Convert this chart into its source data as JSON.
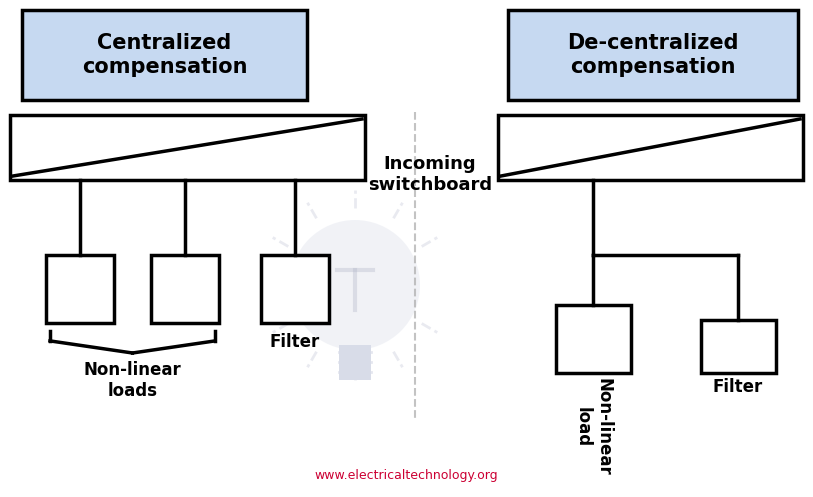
{
  "bg_color": "#ffffff",
  "title_bg_color": "#c6d9f1",
  "title_border_color": "#000000",
  "box_color": "#ffffff",
  "box_border_color": "#000000",
  "line_color": "#000000",
  "lightbulb_color": "#d8dce8",
  "left_title": "Centralized\ncompensation",
  "right_title": "De-centralized\ncompensation",
  "mid_label": "Incoming\nswitchboard",
  "left_filter_label": "Filter",
  "left_loads_label": "Non-linear\nloads",
  "right_filter_label": "Filter",
  "right_load_label": "Non-linear\nload",
  "watermark": "www.electricaltechnology.org",
  "watermark_color": "#cc0033",
  "line_width": 2.5,
  "title_fontsize": 15,
  "label_fontsize": 12,
  "watermark_fontsize": 9,
  "mid_label_fontsize": 13
}
